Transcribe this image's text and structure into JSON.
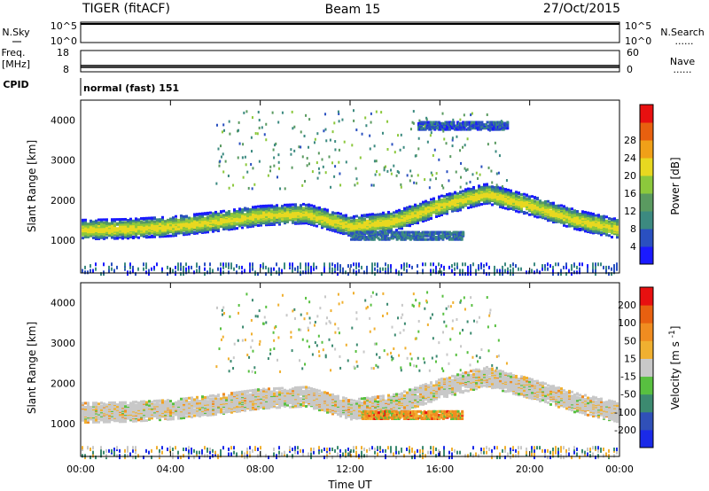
{
  "header": {
    "left": "TIGER (fitACF)",
    "center": "Beam 15",
    "right": "27/Oct/2015"
  },
  "strips": {
    "nsky_label": "N.Sky",
    "nsearch_label": "N.Search",
    "nsky_top": "10^5",
    "nsky_bottom": "10^0",
    "nsearch_top": "10^5",
    "nsearch_bottom": "10^0",
    "freq_label": "Freq.",
    "freq_unit": "[MHz]",
    "freq_top": "18",
    "freq_bottom": "8",
    "nave_label": "Nave",
    "nave_top": "60",
    "nave_bottom": "0",
    "cpid_label": "CPID",
    "cpid_value": "normal (fast) 151",
    "dots": "......"
  },
  "chart_data": [
    {
      "type": "heatmap",
      "panel": "power",
      "ylabel": "Slant Range [km]",
      "ylim": [
        180,
        4500
      ],
      "yticks": [
        "1000",
        "2000",
        "3000",
        "4000"
      ],
      "xlim": [
        0,
        24
      ],
      "colorbar": {
        "label": "Power [dB]",
        "tick_labels": [
          "4",
          "8",
          "12",
          "16",
          "20",
          "24",
          "28"
        ],
        "colors": [
          "#1a1aff",
          "#2a50c0",
          "#3c8a80",
          "#5a9a60",
          "#8cc83c",
          "#e8d820",
          "#f0a018",
          "#e8600f",
          "#e81010"
        ]
      },
      "features": [
        {
          "start_h": 0,
          "end_h": 24,
          "center_km": [
            1300,
            1320,
            1380,
            1500,
            1650,
            1700,
            1380,
            1520,
            1900,
            2200,
            1900,
            1550,
            1300
          ],
          "width_km": 420,
          "peak_db": 26
        },
        {
          "start_h": 12,
          "end_h": 17,
          "center_km": 1150,
          "width_km": 200,
          "peak_db": 14
        },
        {
          "start_h": 15,
          "end_h": 19,
          "center_km": 3900,
          "width_km": 200,
          "peak_db": 12
        }
      ]
    },
    {
      "type": "heatmap",
      "panel": "velocity",
      "ylabel": "Slant Range [km]",
      "ylim": [
        180,
        4500
      ],
      "yticks": [
        "1000",
        "2000",
        "3000",
        "4000"
      ],
      "xlim": [
        0,
        24
      ],
      "xticks": [
        "00:00",
        "04:00",
        "08:00",
        "12:00",
        "16:00",
        "20:00",
        "00:00"
      ],
      "xlabel": "Time UT",
      "colorbar": {
        "label": "Velocity [m s^-1]",
        "tick_labels": [
          "200",
          "100",
          "50",
          "15",
          "-15",
          "-50",
          "-100",
          "-200"
        ],
        "colors": [
          "#1a2ae8",
          "#3050b8",
          "#3c8a70",
          "#58c040",
          "#c8c8c8",
          "#f0b030",
          "#f08c20",
          "#e86010",
          "#e81010"
        ]
      },
      "features": [
        {
          "start_h": 0,
          "end_h": 24,
          "center_km": [
            1300,
            1320,
            1380,
            1500,
            1650,
            1700,
            1380,
            1520,
            1900,
            2200,
            1900,
            1550,
            1300
          ],
          "width_km": 420,
          "velocity": "-15..15"
        },
        {
          "start_h": 12.5,
          "end_h": 17,
          "center_km": 1250,
          "width_km": 200,
          "velocity": "-50..-100"
        }
      ]
    }
  ]
}
